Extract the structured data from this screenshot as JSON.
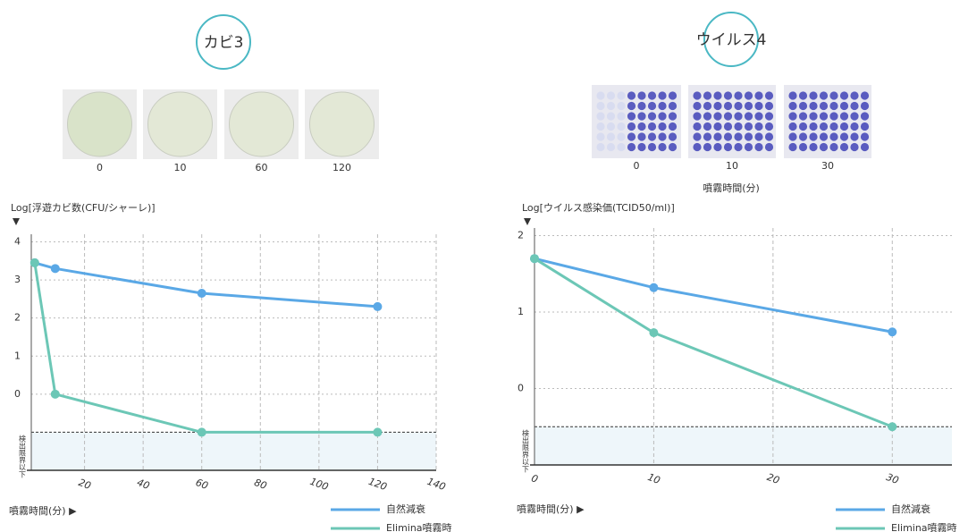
{
  "chart_data": [
    {
      "type": "line",
      "title": "カビ3",
      "image_labels": [
        "0",
        "10",
        "60",
        "120"
      ],
      "y_label": "Log[浮遊カビ数(CFU/シャーレ)]",
      "x_label": "噴霧時間(分) ▶",
      "xlim": [
        0,
        140
      ],
      "ylim": [
        -2,
        4.2
      ],
      "xticks": [
        20,
        40,
        60,
        80,
        100,
        120,
        140
      ],
      "yticks": [
        4,
        3,
        2,
        1,
        0
      ],
      "detection_limit": -1,
      "detection_label": "検出限界以下",
      "grid": true,
      "series": [
        {
          "name": "自然減衰",
          "color": "#5aa8e6",
          "x": [
            3,
            10,
            60,
            120
          ],
          "values": [
            3.45,
            3.3,
            2.65,
            2.3
          ]
        },
        {
          "name": "Elimina噴霧時",
          "color": "#6cc7b6",
          "x": [
            3,
            10,
            60,
            120
          ],
          "values": [
            3.45,
            0,
            -1,
            -1
          ]
        }
      ]
    },
    {
      "type": "line",
      "title": "ウイルス4",
      "image_labels": [
        "0",
        "10",
        "30"
      ],
      "image_caption": "噴霧時間(分)",
      "y_label": "Log[ウイルス感染価(TCID50/ml)]",
      "x_label": "噴霧時間(分) ▶",
      "xlim": [
        0,
        35
      ],
      "ylim": [
        -1,
        2.1
      ],
      "xticks": [
        0,
        10,
        20,
        30
      ],
      "yticks": [
        2,
        1,
        0
      ],
      "detection_limit": -0.5,
      "detection_label": "検出限界以下",
      "grid": true,
      "series": [
        {
          "name": "自然減衰",
          "color": "#5aa8e6",
          "x": [
            0,
            10,
            30
          ],
          "values": [
            1.7,
            1.32,
            0.74
          ]
        },
        {
          "name": "Elimina噴霧時",
          "color": "#6cc7b6",
          "x": [
            0,
            10,
            30
          ],
          "values": [
            1.7,
            0.73,
            -0.5
          ]
        }
      ]
    }
  ]
}
